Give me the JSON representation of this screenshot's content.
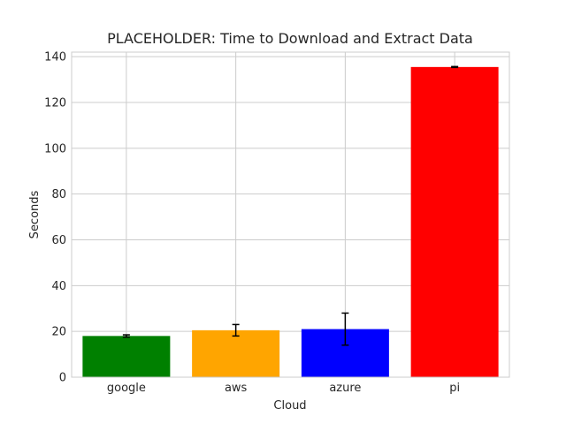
{
  "chart_data": {
    "type": "bar",
    "title": "PLACEHOLDER: Time to Download and Extract Data",
    "xlabel": "Cloud",
    "ylabel": "Seconds",
    "categories": [
      "google",
      "aws",
      "azure",
      "pi"
    ],
    "values": [
      18.0,
      20.5,
      21.0,
      135.5
    ],
    "errors": [
      0.5,
      2.5,
      7.0,
      0.2
    ],
    "colors": [
      "#008000",
      "#FFA500",
      "#0000FF",
      "#FF0000"
    ],
    "ylim": [
      0,
      142
    ],
    "yticks": [
      0,
      20,
      40,
      60,
      80,
      100,
      120,
      140
    ],
    "grid": true,
    "legend": "none"
  }
}
